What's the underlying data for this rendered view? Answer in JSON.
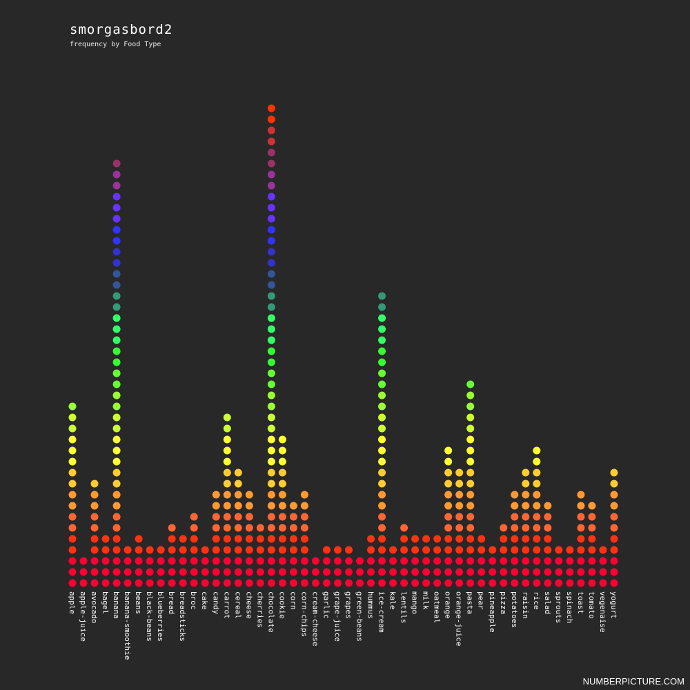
{
  "chart_data": {
    "type": "dot-column",
    "title": "smorgasbord2",
    "subtitle": "frequency by Food Type",
    "categories": [
      "apple",
      "apple-juice",
      "avocado",
      "bagel",
      "banana",
      "banana-smoothie",
      "beans",
      "black-beans",
      "blueberries",
      "bread",
      "breadsticks",
      "broc",
      "cake",
      "candy",
      "carrot",
      "cereal",
      "cheese",
      "cherries",
      "chocolate",
      "cookie",
      "corn",
      "corn-chips",
      "cream-cheese",
      "garlic",
      "grape-juice",
      "grapes",
      "green-beans",
      "hummus",
      "ice-cream",
      "kale",
      "lentils",
      "mango",
      "milk",
      "oatmeal",
      "orange",
      "orange-juice",
      "pasta",
      "pear",
      "pineapple",
      "pizza",
      "potatoes",
      "raisin",
      "rice",
      "salad",
      "sprouts",
      "spinach",
      "toast",
      "tomato",
      "vegenaise",
      "yogurt"
    ],
    "values": [
      17,
      3,
      10,
      5,
      39,
      4,
      5,
      4,
      4,
      6,
      5,
      7,
      4,
      9,
      16,
      11,
      9,
      6,
      44,
      14,
      8,
      9,
      3,
      4,
      4,
      4,
      3,
      5,
      27,
      4,
      6,
      5,
      5,
      5,
      13,
      11,
      19,
      5,
      4,
      6,
      9,
      11,
      13,
      8,
      4,
      4,
      9,
      8,
      4,
      11
    ],
    "color_scale": [
      "#ff0033",
      "#ff3311",
      "#ff6633",
      "#ff9933",
      "#ffcc33",
      "#ffff33",
      "#ccff33",
      "#99ff33",
      "#66ff33",
      "#33ff33",
      "#33ff66",
      "#339977",
      "#335599",
      "#3333cc",
      "#3333ff",
      "#6633ff",
      "#993399",
      "#993366",
      "#cc3333",
      "#ff3300"
    ]
  },
  "watermark": "NUMBERPICTURE.COM"
}
